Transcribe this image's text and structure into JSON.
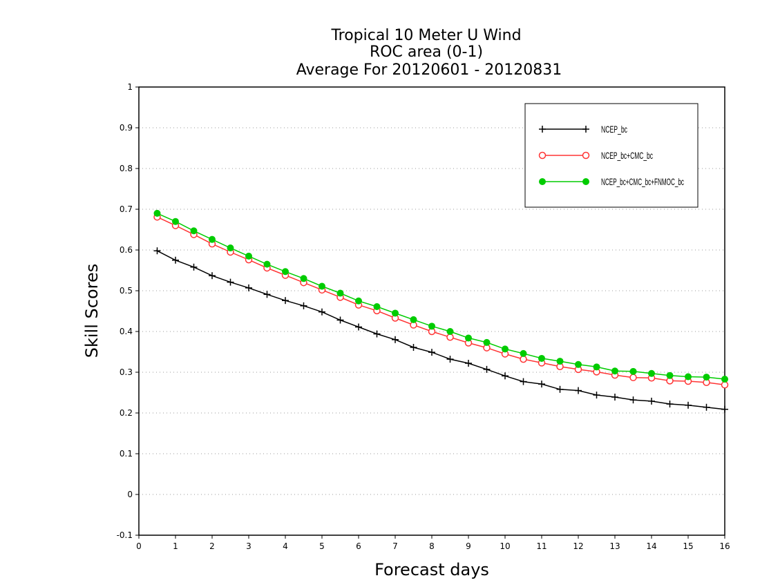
{
  "chart_data": {
    "type": "line",
    "title": [
      "Tropical 10 Meter U Wind",
      "ROC area (0-1)",
      "Average For 20120601 - 20120831"
    ],
    "xlabel": "Forecast days",
    "ylabel": "Skill Scores",
    "xlim": [
      0,
      16
    ],
    "ylim": [
      -0.1,
      1
    ],
    "xticks": [
      "0",
      "1",
      "2",
      "3",
      "4",
      "5",
      "6",
      "7",
      "8",
      "9",
      "10",
      "11",
      "12",
      "13",
      "14",
      "15",
      "16"
    ],
    "yticks": [
      "-0.1",
      "0",
      "0.1",
      "0.2",
      "0.3",
      "0.4",
      "0.5",
      "0.6",
      "0.7",
      "0.8",
      "0.9",
      "1"
    ],
    "grid": "horizontal dotted",
    "legend_position": "top-right",
    "x": [
      0.5,
      1,
      1.5,
      2,
      2.5,
      3,
      3.5,
      4,
      4.5,
      5,
      5.5,
      6,
      6.5,
      7,
      7.5,
      8,
      8.5,
      9,
      9.5,
      10,
      10.5,
      11,
      11.5,
      12,
      12.5,
      13,
      13.5,
      14,
      14.5,
      15,
      15.5,
      16
    ],
    "series": [
      {
        "name": "NCEP_bc",
        "color": "#000000",
        "marker": "plus",
        "values": [
          0.598,
          0.575,
          0.558,
          0.537,
          0.521,
          0.507,
          0.491,
          0.476,
          0.463,
          0.448,
          0.428,
          0.411,
          0.394,
          0.38,
          0.361,
          0.349,
          0.332,
          0.322,
          0.307,
          0.291,
          0.277,
          0.271,
          0.258,
          0.255,
          0.244,
          0.239,
          0.232,
          0.229,
          0.222,
          0.219,
          0.214,
          0.209
        ]
      },
      {
        "name": "NCEP_bc+CMC_bc",
        "color": "#ff3333",
        "marker": "open-circle",
        "values": [
          0.681,
          0.66,
          0.638,
          0.615,
          0.595,
          0.576,
          0.556,
          0.538,
          0.52,
          0.502,
          0.484,
          0.465,
          0.451,
          0.433,
          0.416,
          0.4,
          0.386,
          0.372,
          0.36,
          0.345,
          0.332,
          0.323,
          0.314,
          0.307,
          0.301,
          0.293,
          0.287,
          0.286,
          0.279,
          0.278,
          0.275,
          0.269
        ]
      },
      {
        "name": "NCEP_bc+CMC_bc+FNMOC_bc",
        "color": "#00cc00",
        "marker": "filled-circle",
        "values": [
          0.69,
          0.67,
          0.647,
          0.626,
          0.605,
          0.585,
          0.565,
          0.547,
          0.53,
          0.511,
          0.494,
          0.475,
          0.461,
          0.445,
          0.429,
          0.413,
          0.4,
          0.384,
          0.373,
          0.357,
          0.346,
          0.334,
          0.327,
          0.319,
          0.313,
          0.303,
          0.302,
          0.297,
          0.292,
          0.289,
          0.288,
          0.283
        ]
      }
    ]
  }
}
